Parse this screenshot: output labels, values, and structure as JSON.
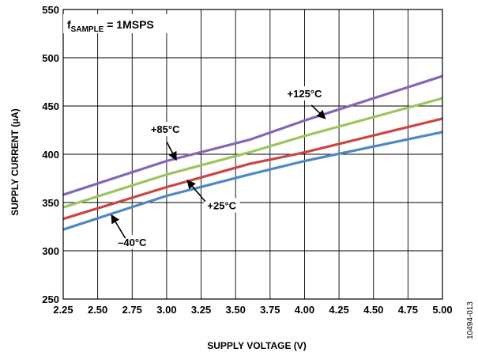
{
  "chart_data": {
    "type": "line",
    "x_title": "SUPPLY VOLTAGE (V)",
    "y_title": "SUPPLY CURRENT (µA)",
    "xlim": [
      2.25,
      5.0
    ],
    "ylim": [
      250,
      550
    ],
    "x_ticks": [
      "2.25",
      "2.50",
      "2.75",
      "3.00",
      "3.25",
      "3.50",
      "3.75",
      "4.00",
      "4.25",
      "4.50",
      "4.75",
      "5.00"
    ],
    "y_ticks": [
      "250",
      "300",
      "350",
      "400",
      "450",
      "500",
      "550"
    ],
    "grid": true,
    "condition": {
      "main": "f",
      "sub": "SAMPLE",
      "rest": " = 1MSPS"
    },
    "figure_id": "10494-013",
    "x": [
      2.25,
      5.0
    ],
    "series": [
      {
        "name": "+125°C",
        "color": "#8565b5",
        "points": [
          [
            2.25,
            358
          ],
          [
            3.0,
            393
          ],
          [
            3.6,
            415
          ],
          [
            4.0,
            435
          ],
          [
            5.0,
            481
          ]
        ]
      },
      {
        "name": "+85°C",
        "color": "#9cc55b",
        "points": [
          [
            2.25,
            345
          ],
          [
            3.0,
            379
          ],
          [
            3.6,
            402
          ],
          [
            4.0,
            419
          ],
          [
            5.0,
            458
          ]
        ]
      },
      {
        "name": "+25°C",
        "color": "#cc4444",
        "points": [
          [
            2.25,
            333
          ],
          [
            3.0,
            366
          ],
          [
            3.6,
            390
          ],
          [
            4.0,
            402
          ],
          [
            5.0,
            437
          ]
        ]
      },
      {
        "name": "–40°C",
        "color": "#4f88c6",
        "points": [
          [
            2.25,
            322
          ],
          [
            3.0,
            357
          ],
          [
            3.6,
            379
          ],
          [
            4.0,
            393
          ],
          [
            5.0,
            423
          ]
        ]
      }
    ],
    "annotations": [
      {
        "label": "+125°C",
        "text_at": [
          4.0,
          459
        ],
        "arrow_from": [
          4.05,
          451
        ],
        "arrow_to": [
          4.15,
          437
        ]
      },
      {
        "label": "+85°C",
        "text_at": [
          2.99,
          422
        ],
        "arrow_from": [
          3.0,
          413
        ],
        "arrow_to": [
          3.07,
          394
        ]
      },
      {
        "label": "+25°C",
        "text_at": [
          3.4,
          343
        ],
        "arrow_from": [
          3.28,
          351
        ],
        "arrow_to": [
          3.15,
          373
        ]
      },
      {
        "label": "–40°C",
        "text_at": [
          2.75,
          305
        ],
        "arrow_from": [
          2.7,
          313
        ],
        "arrow_to": [
          2.6,
          337
        ]
      }
    ]
  }
}
